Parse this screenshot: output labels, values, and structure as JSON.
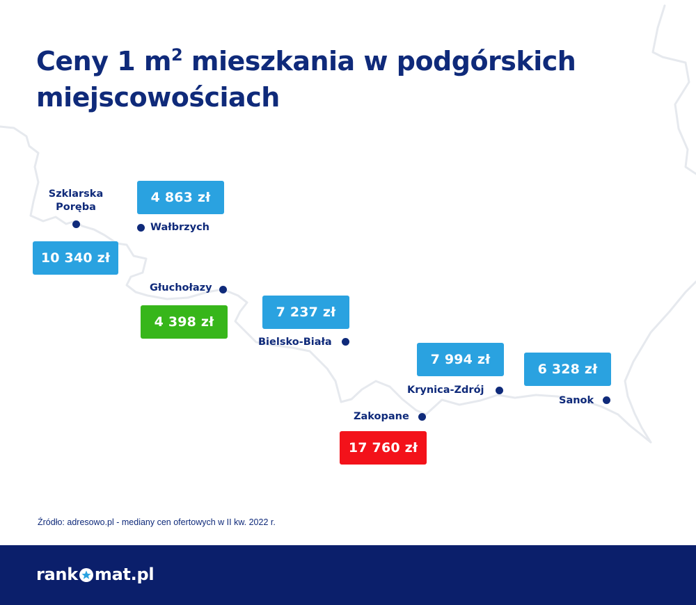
{
  "title": {
    "line1_prefix": "Ceny 1 m",
    "sup": "2",
    "line1_suffix": " mieszkania w podgórskich",
    "line2": "miejscowościach"
  },
  "colors": {
    "title": "#0f2a7a",
    "box_default": "#2aa2e0",
    "box_lowest": "#37b61a",
    "box_highest": "#f3121a",
    "footer": "#0b1f6b",
    "map_outline": "#e6e9ee"
  },
  "cities": [
    {
      "id": "szklarska-poreba",
      "name_line1": "Szklarska",
      "name_line2": "Poręba",
      "price": "10 340 zł",
      "level": "default"
    },
    {
      "id": "walbrzych",
      "name_line1": "Wałbrzych",
      "name_line2": "",
      "price": "4 863 zł",
      "level": "default"
    },
    {
      "id": "glucholazy",
      "name_line1": "Głuchołazy",
      "name_line2": "",
      "price": "4 398 zł",
      "level": "lowest"
    },
    {
      "id": "bielsko-biala",
      "name_line1": "Bielsko-Biała",
      "name_line2": "",
      "price": "7 237 zł",
      "level": "default"
    },
    {
      "id": "zakopane",
      "name_line1": "Zakopane",
      "name_line2": "",
      "price": "17 760 zł",
      "level": "highest"
    },
    {
      "id": "krynica-zdroj",
      "name_line1": "Krynica-Zdrój",
      "name_line2": "",
      "price": "7 994 zł",
      "level": "default"
    },
    {
      "id": "sanok",
      "name_line1": "Sanok",
      "name_line2": "",
      "price": "6 328 zł",
      "level": "default"
    }
  ],
  "source": "Źródło: adresowo.pl - mediany cen ofertowych w II kw. 2022 r.",
  "footer": {
    "logo_part1": "rank",
    "logo_part2": "mat.pl",
    "logo_icon": "star-o-icon"
  }
}
